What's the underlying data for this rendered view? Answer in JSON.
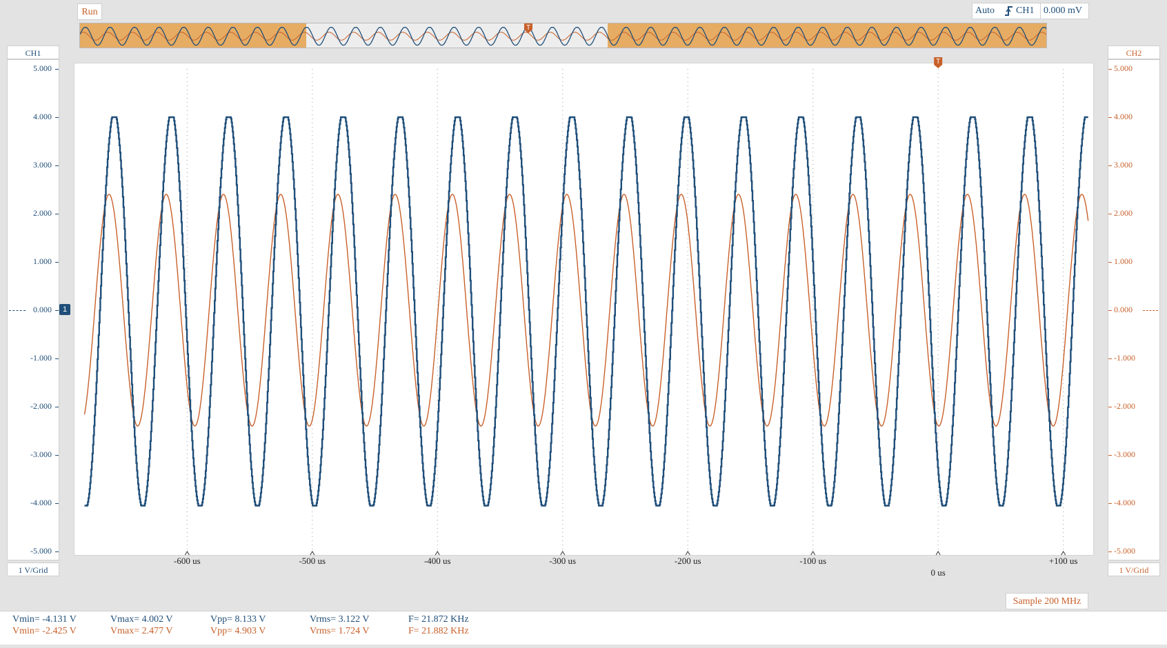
{
  "toolbar": {
    "run_label": "Run"
  },
  "trigger": {
    "mode": "Auto",
    "edge_icon": "rising-edge-icon",
    "source": "CH1",
    "level": "0.000 mV"
  },
  "colors": {
    "ch1": "#1f4e79",
    "ch2": "#c8602a",
    "overview_highlight": "#e6ac63"
  },
  "ch1": {
    "label": "CH1",
    "scale": "1 V/Grid",
    "ticks": [
      "5.000",
      "4.000",
      "3.000",
      "2.000",
      "1.000",
      "0.000",
      "-1.000",
      "-2.000",
      "-3.000",
      "-4.000",
      "-5.000"
    ]
  },
  "ch2": {
    "label": "CH2",
    "scale": "1 V/Grid",
    "ticks": [
      "5.000",
      "4.000",
      "3.000",
      "2.000",
      "1.000",
      "0.000",
      "-1.000",
      "-2.000",
      "-3.000",
      "-4.000",
      "-5.000"
    ]
  },
  "trigger_marker": "T",
  "ch1_marker": "1",
  "chart_data": {
    "type": "line",
    "x_unit": "us",
    "x_ticks": [
      "-600 us",
      "-500 us",
      "-400 us",
      "-300 us",
      "-200 us",
      "-100 us",
      "0 us",
      "+100 us"
    ],
    "xlim": [
      -690,
      125
    ],
    "ylim": [
      -5,
      5
    ],
    "grid": true,
    "series": [
      {
        "name": "CH1",
        "amplitude": 4.0,
        "frequency_khz": 21.872
      },
      {
        "name": "CH2",
        "amplitude": 2.45,
        "frequency_khz": 21.882
      }
    ]
  },
  "sample_rate": "Sample 200 MHz",
  "stats": {
    "ch1": {
      "vmin": "Vmin= -4.131 V",
      "vmax": "Vmax= 4.002 V",
      "vpp": "Vpp= 8.133 V",
      "vrms": "Vrms= 3.122 V",
      "freq": "F= 21.872 KHz"
    },
    "ch2": {
      "vmin": "Vmin= -2.425 V",
      "vmax": "Vmax= 2.477 V",
      "vpp": "Vpp= 4.903 V",
      "vrms": "Vrms= 1.724 V",
      "freq": "F= 21.882 KHz"
    }
  }
}
